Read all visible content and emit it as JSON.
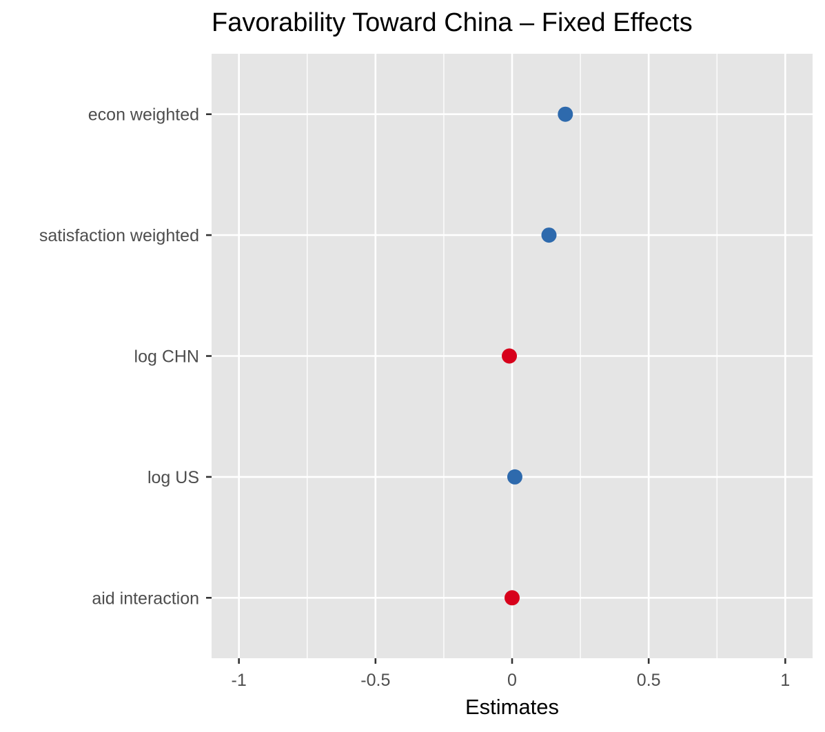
{
  "chart_data": {
    "type": "scatter",
    "title": "Favorability Toward China – Fixed Effects",
    "xlabel": "Estimates",
    "ylabel": "",
    "xlim": [
      -1.1,
      1.1
    ],
    "xticks": [
      -1,
      -0.5,
      0,
      0.5,
      1
    ],
    "xtick_labels": [
      "-1",
      "-0.5",
      "0",
      "0.5",
      "1"
    ],
    "categories": [
      "econ weighted",
      "satisfaction weighted",
      "log CHN",
      "log US",
      "aid interaction"
    ],
    "values": [
      0.195,
      0.135,
      -0.01,
      0.01,
      0.0
    ],
    "point_colors": [
      "#2e6aad",
      "#2e6aad",
      "#d7001b",
      "#2e6aad",
      "#d7001b"
    ],
    "grid": true,
    "legend": "none",
    "colors": {
      "panel": "#e5e5e5",
      "grid": "#ffffff",
      "positive": "#2e6aad",
      "negative": "#d7001b"
    }
  }
}
